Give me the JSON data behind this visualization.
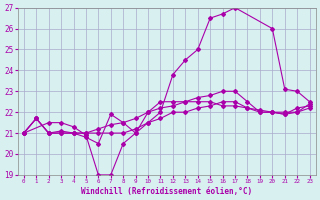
{
  "background_color": "#d8f0f0",
  "grid_color": "#aaaacc",
  "line_color": "#aa00aa",
  "xlim": [
    -0.5,
    23.5
  ],
  "ylim": [
    19,
    27
  ],
  "yticks": [
    19,
    20,
    21,
    22,
    23,
    24,
    25,
    26,
    27
  ],
  "xticks": [
    0,
    1,
    2,
    3,
    4,
    5,
    6,
    7,
    8,
    9,
    10,
    11,
    12,
    13,
    14,
    15,
    16,
    17,
    18,
    19,
    20,
    21,
    22,
    23
  ],
  "xlabel": "Windchill (Refroidissement éolien,°C)",
  "series": [
    {
      "x": [
        0,
        1,
        2,
        3,
        4,
        5,
        6,
        7,
        8,
        9,
        10,
        11,
        12,
        13,
        14,
        15,
        16,
        17,
        18,
        19,
        20,
        21,
        22,
        23
      ],
      "y": [
        21.0,
        21.7,
        21.0,
        21.0,
        21.0,
        20.8,
        20.5,
        21.9,
        21.5,
        21.0,
        22.0,
        22.5,
        22.5,
        22.5,
        22.7,
        22.8,
        23.0,
        23.0,
        22.5,
        22.0,
        22.0,
        22.0,
        22.0,
        22.2
      ]
    },
    {
      "x": [
        0,
        1,
        2,
        3,
        4,
        5,
        6,
        7,
        8,
        9,
        10,
        11,
        12,
        13,
        14,
        15,
        16,
        17,
        18,
        19,
        20,
        21,
        22,
        23
      ],
      "y": [
        21.0,
        21.7,
        21.0,
        21.1,
        21.0,
        21.0,
        21.0,
        21.0,
        21.0,
        21.2,
        21.5,
        21.7,
        22.0,
        22.0,
        22.2,
        22.3,
        22.5,
        22.5,
        22.2,
        22.0,
        22.0,
        21.9,
        22.0,
        22.4
      ]
    },
    {
      "x": [
        0,
        1,
        2,
        3,
        4,
        5,
        6,
        7,
        8,
        9,
        10,
        11,
        12,
        13,
        14,
        15,
        16,
        17,
        18,
        19,
        20,
        21,
        22,
        23
      ],
      "y": [
        21.0,
        21.7,
        21.0,
        21.0,
        21.0,
        21.0,
        21.2,
        21.4,
        21.5,
        21.7,
        22.0,
        22.2,
        22.3,
        22.5,
        22.5,
        22.5,
        22.3,
        22.3,
        22.2,
        22.1,
        22.0,
        21.9,
        22.2,
        22.3
      ]
    },
    {
      "x": [
        0,
        2,
        3,
        4,
        5,
        6,
        7,
        8,
        9,
        10,
        11,
        12,
        13,
        14,
        15,
        16,
        17,
        20,
        21,
        22,
        23
      ],
      "y": [
        21.0,
        21.5,
        21.5,
        21.3,
        20.9,
        19.0,
        19.0,
        20.5,
        21.0,
        21.5,
        22.0,
        23.8,
        24.5,
        25.0,
        26.5,
        26.7,
        27.0,
        26.0,
        23.1,
        23.0,
        22.5
      ]
    }
  ]
}
